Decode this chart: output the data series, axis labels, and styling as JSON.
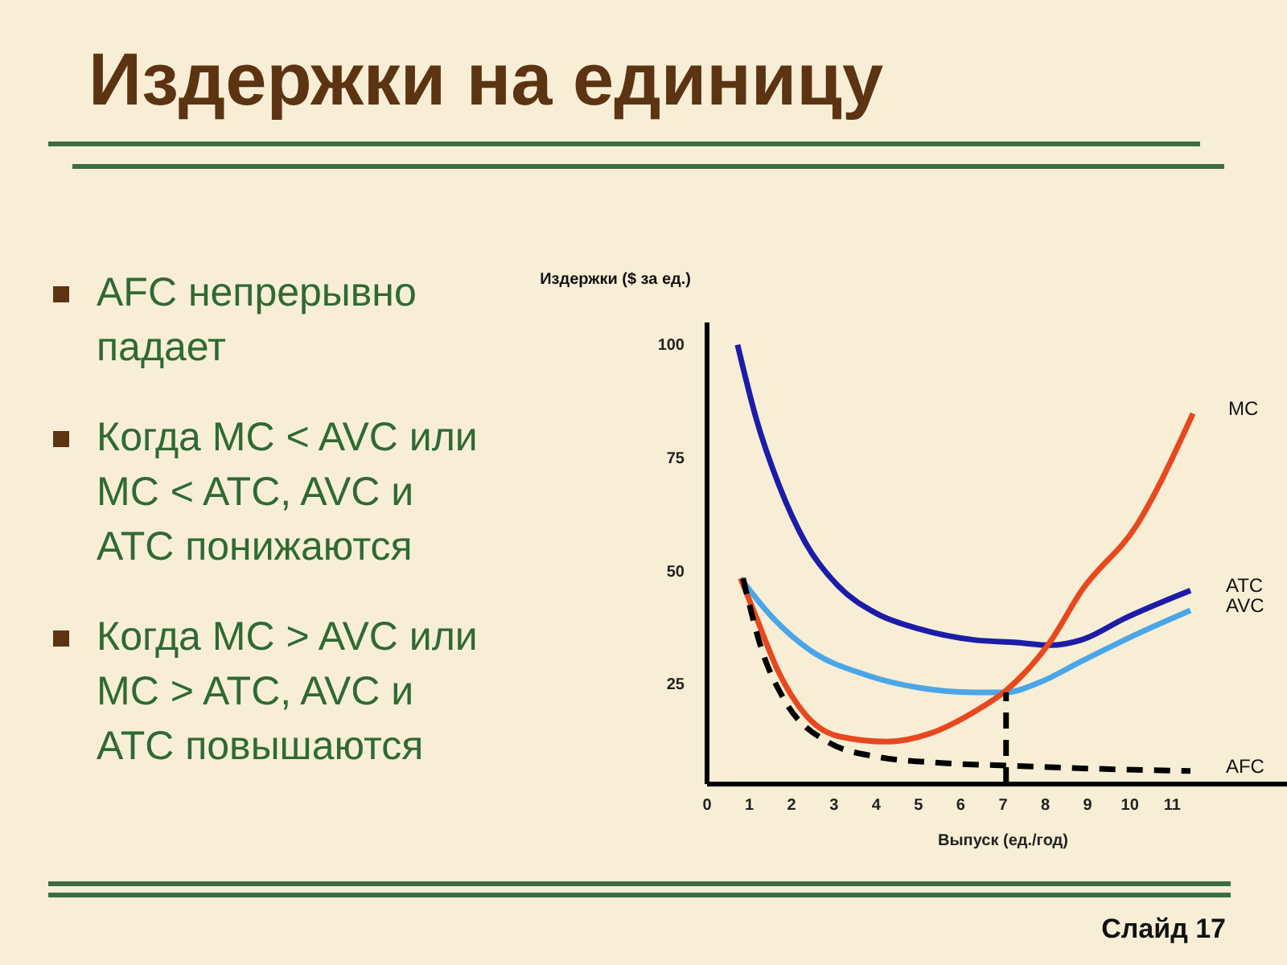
{
  "chart_data": {
    "type": "line",
    "title": "Издержки на единицу",
    "xlabel": "Выпуск (ед./год)",
    "ylabel": "Издержки ($ за ед.)",
    "xlim": [
      0,
      14
    ],
    "xticks": [
      0,
      1,
      2,
      3,
      4,
      5,
      6,
      7,
      8,
      9,
      10,
      11
    ],
    "ylim": [
      3,
      105
    ],
    "yticks": [
      25,
      50,
      75,
      100
    ],
    "grid": false,
    "legend": false,
    "marker": "none",
    "series": [
      {
        "name": "ATC",
        "color": "#1c1ca8",
        "line_style": "solid",
        "x": [
          0.74,
          1.19,
          1.71,
          2.35,
          3.12,
          4.01,
          5.04,
          6.32,
          7.35,
          8.12,
          8.88,
          9.91,
          11.45
        ],
        "values": [
          99.9,
          83.3,
          69.1,
          56.1,
          46.6,
          40.6,
          37.1,
          34.7,
          34.1,
          33.5,
          34.7,
          39.5,
          45.6
        ]
      },
      {
        "name": "AVC",
        "color": "#4aa6e8",
        "line_style": "solid",
        "x": [
          0.81,
          1.58,
          2.47,
          3.76,
          5.04,
          6.32,
          7.09,
          7.86,
          8.88,
          10.17,
          11.45
        ],
        "values": [
          48.3,
          39.5,
          32.3,
          27.0,
          24.1,
          23.1,
          23.1,
          25.2,
          30.0,
          35.9,
          41.2
        ]
      },
      {
        "name": "MC",
        "color": "#e8481e",
        "line_style": "solid",
        "x": [
          0.81,
          1.19,
          1.71,
          2.35,
          3.12,
          4.27,
          5.29,
          6.32,
          7.09,
          8.12,
          8.88,
          10.17,
          11.51
        ],
        "values": [
          48.3,
          39.5,
          27.6,
          18.1,
          13.4,
          12.2,
          14.0,
          18.7,
          23.5,
          34.1,
          45.6,
          59.9,
          84.7
        ]
      },
      {
        "name": "AFC",
        "color": "#000000",
        "line_style": "dashed",
        "x": [
          0.87,
          1.32,
          1.83,
          2.86,
          4.01,
          5.55,
          7.09,
          8.88,
          11.45
        ],
        "values": [
          48.3,
          32.3,
          21.7,
          12.2,
          8.9,
          7.5,
          6.9,
          6.3,
          5.7
        ]
      },
      {
        "color": "#000000",
        "line_style": "dashed",
        "x": [
          7.09,
          7.09
        ],
        "values": [
          3,
          23.1
        ]
      }
    ],
    "annotations": [
      "AFC непрерывно падает",
      "Когда MC < AVC или MC < ATC, AVC и ATC понижаются",
      "Когда MC > AVC или MC > ATC, AVC и ATC повышаются",
      "Слайд 17"
    ]
  }
}
